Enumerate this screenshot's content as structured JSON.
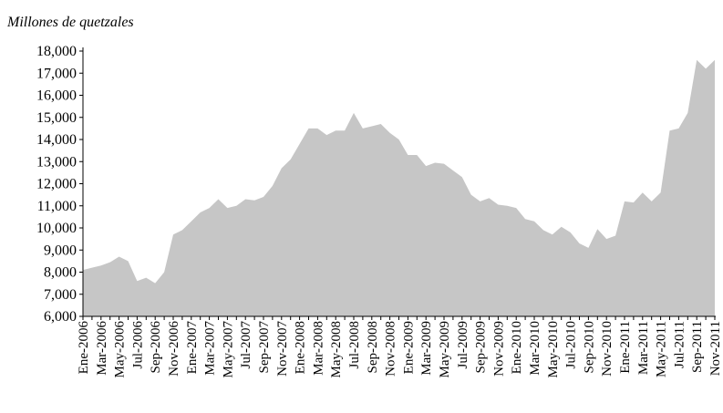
{
  "chart_data": {
    "type": "area",
    "title": "Millones de quetzales",
    "color": "#c6c6c6",
    "categories": [
      "Ene-2006",
      null,
      "Mar-2006",
      null,
      "May-2006",
      null,
      "Jul-2006",
      null,
      "Sep-2006",
      null,
      "Nov-2006",
      null,
      "Ene-2007",
      null,
      "Mar-2007",
      null,
      "May-2007",
      null,
      "Jul-2007",
      null,
      "Sep-2007",
      null,
      "Nov-2007",
      null,
      "Ene-2008",
      null,
      "Mar-2008",
      null,
      "May-2008",
      null,
      "Jul-2008",
      null,
      "Sep-2008",
      null,
      "Nov-2008",
      null,
      "Ene-2009",
      null,
      "Mar-2009",
      null,
      "May-2009",
      null,
      "Jul-2009",
      null,
      "Sep-2009",
      null,
      "Nov-2009",
      null,
      "Ene-2010",
      null,
      "Mar-2010",
      null,
      "May-2010",
      null,
      "Jul-2010",
      null,
      "Sep-2010",
      null,
      "Nov-2010",
      null,
      "Ene-2011",
      null,
      "Mar-2011",
      null,
      "May-2011",
      null,
      "Jul-2011",
      null,
      "Sep-2011",
      null,
      "Nov-2011"
    ],
    "values": [
      8100,
      8200,
      8300,
      8450,
      8700,
      8500,
      7600,
      7750,
      7500,
      8000,
      9700,
      9900,
      10300,
      10700,
      10900,
      11300,
      10900,
      11000,
      11300,
      11250,
      11400,
      11900,
      12700,
      13100,
      13800,
      14500,
      14500,
      14200,
      14400,
      14400,
      15200,
      14500,
      14600,
      14700,
      14300,
      14000,
      13300,
      13300,
      12800,
      12950,
      12900,
      12600,
      12300,
      11500,
      11200,
      11350,
      11050,
      11000,
      10900,
      10400,
      10300,
      9900,
      9700,
      10050,
      9800,
      9300,
      9100,
      9950,
      9500,
      9650,
      11200,
      11150,
      11600,
      11200,
      11600,
      14400,
      14500,
      15200,
      17600,
      17200,
      17600
    ],
    "ylim": [
      6000,
      18000
    ],
    "yticks": [
      {
        "value": 6000,
        "label": "6,000"
      },
      {
        "value": 7000,
        "label": "7,000"
      },
      {
        "value": 8000,
        "label": "8,000"
      },
      {
        "value": 9000,
        "label": "9,000"
      },
      {
        "value": 10000,
        "label": "10,000"
      },
      {
        "value": 11000,
        "label": "11,000"
      },
      {
        "value": 12000,
        "label": "12,000"
      },
      {
        "value": 13000,
        "label": "13,000"
      },
      {
        "value": 14000,
        "label": "14,000"
      },
      {
        "value": 15000,
        "label": "15,000"
      },
      {
        "value": 16000,
        "label": "16,000"
      },
      {
        "value": 17000,
        "label": "17,000"
      },
      {
        "value": 18000,
        "label": "18,000"
      }
    ]
  }
}
